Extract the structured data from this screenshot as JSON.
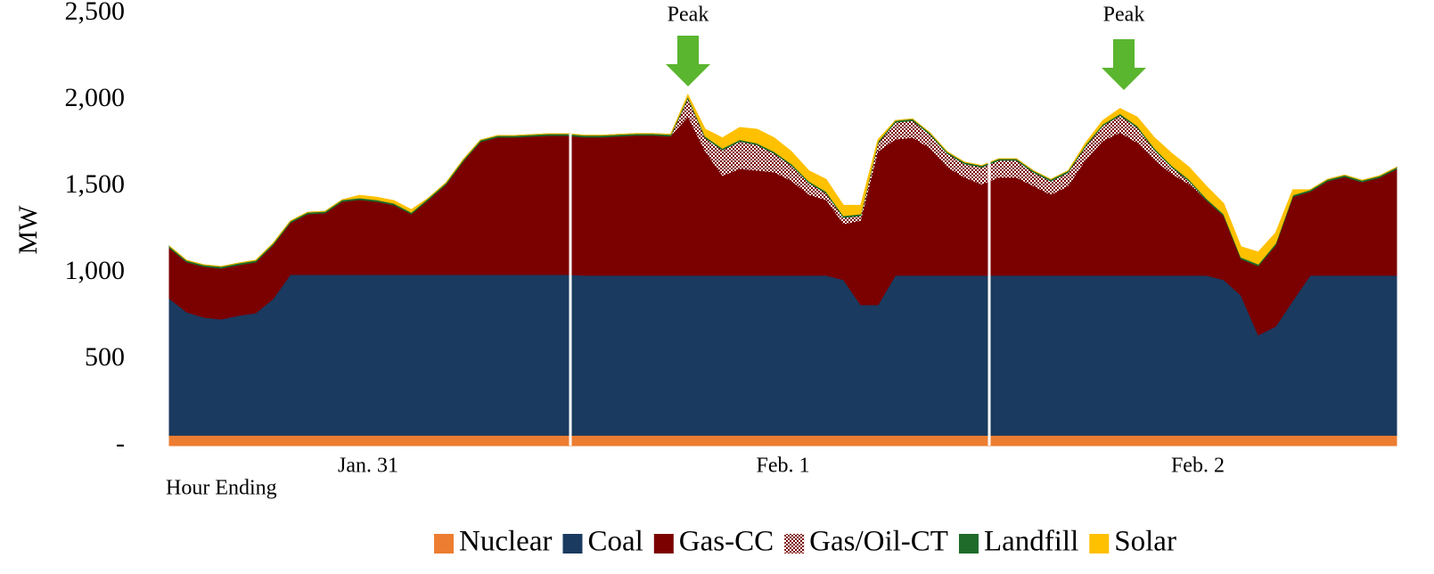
{
  "chart_data": {
    "type": "stacked_area",
    "y_label": "MW",
    "x_label": "Hour Ending",
    "annotations": [
      "Peak",
      "Peak"
    ],
    "ylim": [
      0,
      2500
    ],
    "yticks": [
      {
        "value": 0,
        "label": "-"
      },
      500,
      {
        "value": 1000,
        "label": "1,000"
      },
      {
        "value": 1500,
        "label": "1,500"
      },
      {
        "value": 2000,
        "label": "2,000"
      },
      {
        "value": 2500,
        "label": "2,500"
      }
    ],
    "categories": [
      null,
      null,
      null,
      null,
      null,
      null,
      null,
      null,
      null,
      null,
      null,
      "Jan. 31",
      null,
      null,
      null,
      null,
      null,
      null,
      null,
      null,
      null,
      null,
      null,
      null,
      null,
      null,
      null,
      null,
      null,
      null,
      null,
      null,
      null,
      null,
      null,
      "Feb. 1",
      null,
      null,
      null,
      null,
      null,
      null,
      null,
      null,
      null,
      null,
      null,
      null,
      null,
      null,
      null,
      null,
      null,
      null,
      null,
      null,
      null,
      null,
      null,
      "Feb. 2",
      null,
      null,
      null,
      null,
      null,
      null,
      null,
      null,
      null,
      null,
      null,
      null
    ],
    "series": [
      {
        "name": "Nuclear",
        "color": "#ed7d31",
        "values": [
          60,
          60,
          60,
          60,
          60,
          60,
          60,
          60,
          60,
          60,
          60,
          60,
          60,
          60,
          60,
          60,
          60,
          60,
          60,
          60,
          60,
          60,
          60,
          60,
          60,
          60,
          60,
          60,
          60,
          60,
          60,
          60,
          60,
          60,
          60,
          60,
          60,
          60,
          60,
          60,
          60,
          60,
          60,
          60,
          60,
          60,
          60,
          60,
          60,
          60,
          60,
          60,
          60,
          60,
          60,
          60,
          60,
          60,
          60,
          60,
          60,
          60,
          60,
          60,
          60,
          60,
          60,
          60,
          60,
          60,
          60,
          60
        ]
      },
      {
        "name": "Coal",
        "color": "#1a3a5f",
        "values": [
          792,
          713,
          682,
          672,
          693,
          708,
          790,
          930,
          930,
          930,
          930,
          930,
          930,
          930,
          930,
          930,
          930,
          930,
          930,
          930,
          930,
          930,
          930,
          930,
          925,
          925,
          925,
          925,
          925,
          925,
          925,
          925,
          925,
          925,
          925,
          925,
          925,
          925,
          925,
          900,
          755,
          755,
          925,
          925,
          925,
          925,
          925,
          925,
          925,
          925,
          925,
          925,
          925,
          925,
          925,
          925,
          925,
          925,
          925,
          925,
          925,
          900,
          810,
          580,
          630,
          780,
          925,
          925,
          925,
          925,
          925,
          925
        ]
      },
      {
        "name": "Gas-CC",
        "color": "#7b0000",
        "values": [
          292,
          289,
          294,
          294,
          293,
          294,
          310,
          299,
          350,
          355,
          422,
          433,
          422,
          402,
          350,
          433,
          520,
          654,
          768,
          794,
          794,
          799,
          804,
          804,
          800,
          800,
          805,
          810,
          810,
          805,
          915,
          715,
          575,
          615,
          605,
          595,
          545,
          465,
          435,
          320,
          485,
          885,
          785,
          795,
          735,
          625,
          565,
          525,
          565,
          565,
          515,
          465,
          515,
          665,
          775,
          825,
          765,
          665,
          585,
          525,
          435,
          370,
          210,
          400,
          470,
          600,
          485,
          545,
          570,
          540,
          565,
          615
        ]
      },
      {
        "name": "Gas/Oil-CT",
        "color": "#7b0000",
        "hatch": true,
        "values": [
          0,
          0,
          0,
          0,
          0,
          0,
          0,
          0,
          0,
          0,
          0,
          0,
          0,
          0,
          0,
          0,
          0,
          0,
          0,
          0,
          0,
          0,
          0,
          0,
          0,
          0,
          0,
          0,
          0,
          0,
          110,
          80,
          150,
          160,
          150,
          110,
          90,
          70,
          40,
          40,
          30,
          50,
          100,
          100,
          80,
          80,
          80,
          100,
          100,
          100,
          80,
          80,
          80,
          80,
          90,
          100,
          90,
          60,
          40,
          20,
          0,
          0,
          0,
          0,
          0,
          0,
          0,
          0,
          0,
          0,
          0,
          0
        ]
      },
      {
        "name": "Landfill",
        "color": "#1e6b2a",
        "values": [
          10,
          10,
          10,
          10,
          10,
          10,
          10,
          10,
          10,
          10,
          10,
          10,
          10,
          10,
          10,
          10,
          10,
          10,
          10,
          10,
          10,
          10,
          10,
          10,
          10,
          10,
          10,
          10,
          10,
          10,
          10,
          10,
          10,
          10,
          10,
          10,
          10,
          10,
          10,
          10,
          10,
          10,
          10,
          10,
          10,
          10,
          10,
          10,
          10,
          10,
          10,
          10,
          10,
          10,
          10,
          10,
          10,
          10,
          10,
          10,
          10,
          10,
          10,
          10,
          10,
          10,
          10,
          10,
          10,
          10,
          10,
          10
        ]
      },
      {
        "name": "Solar",
        "color": "#ffc000",
        "values": [
          0,
          0,
          0,
          0,
          0,
          0,
          0,
          0,
          0,
          0,
          0,
          15,
          15,
          15,
          15,
          0,
          0,
          0,
          0,
          0,
          0,
          0,
          0,
          0,
          0,
          0,
          0,
          0,
          0,
          0,
          10,
          40,
          60,
          70,
          80,
          80,
          70,
          60,
          70,
          60,
          50,
          10,
          0,
          0,
          0,
          0,
          0,
          0,
          0,
          0,
          0,
          0,
          0,
          10,
          20,
          30,
          50,
          60,
          70,
          70,
          70,
          60,
          60,
          70,
          60,
          30,
          0,
          0,
          0,
          0,
          0,
          0
        ]
      }
    ]
  }
}
